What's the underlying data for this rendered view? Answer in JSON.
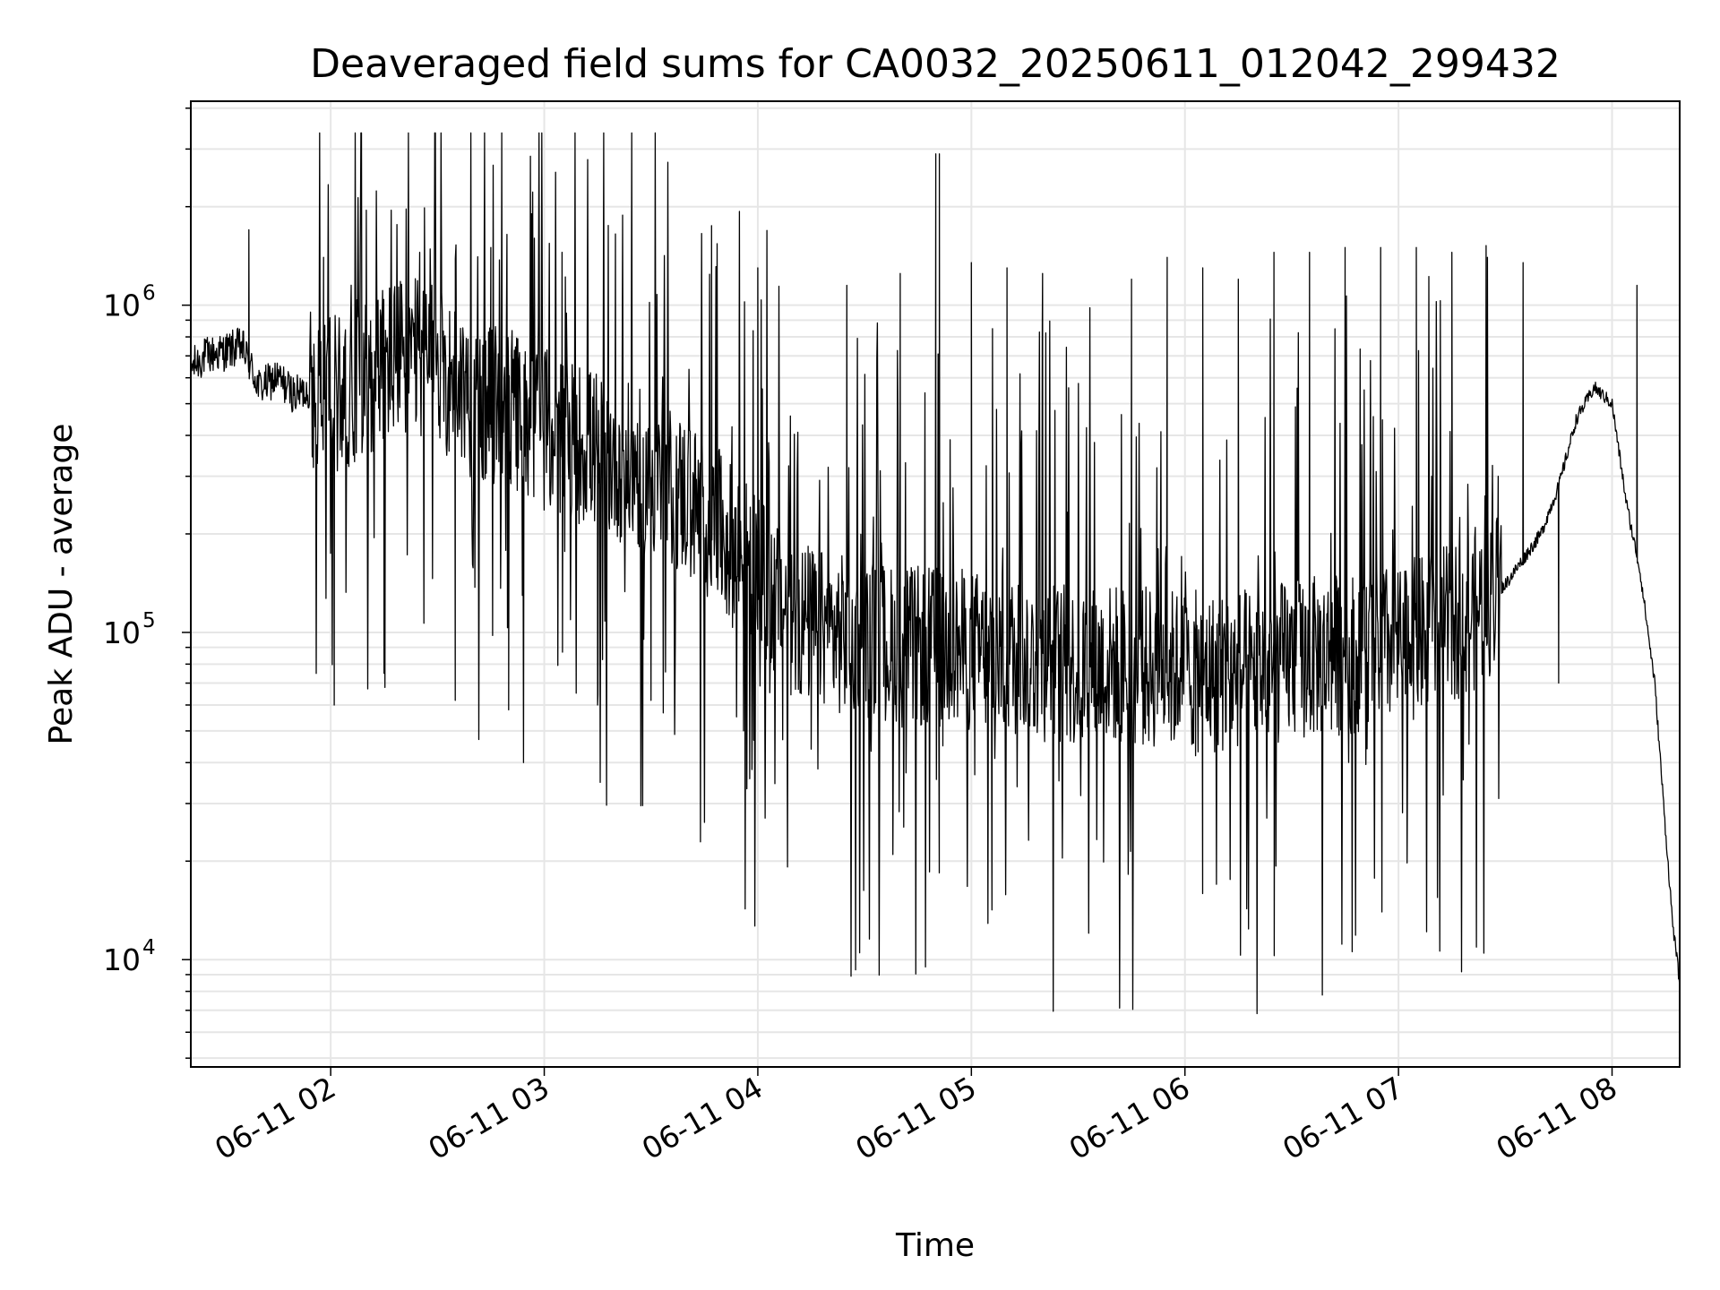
{
  "chart_data": {
    "type": "line",
    "title": "Deaveraged field sums for CA0032_20250611_012042_299432",
    "xlabel": "Time",
    "ylabel": "Peak ADU - average",
    "x_axis": {
      "kind": "time",
      "range": [
        "2025-06-11T01:20:42",
        "2025-06-11T08:19:00"
      ],
      "ticks": [
        {
          "value": "2025-06-11T02:00",
          "label": "06-11 02"
        },
        {
          "value": "2025-06-11T03:00",
          "label": "06-11 03"
        },
        {
          "value": "2025-06-11T04:00",
          "label": "06-11 04"
        },
        {
          "value": "2025-06-11T05:00",
          "label": "06-11 05"
        },
        {
          "value": "2025-06-11T06:00",
          "label": "06-11 06"
        },
        {
          "value": "2025-06-11T07:00",
          "label": "06-11 07"
        },
        {
          "value": "2025-06-11T08:00",
          "label": "06-11 08"
        }
      ]
    },
    "y_axis": {
      "scale": "log",
      "range": [
        4700,
        4200000
      ],
      "ticks": [
        {
          "value": 10000,
          "base": "10",
          "exp": "4"
        },
        {
          "value": 100000,
          "base": "10",
          "exp": "5"
        },
        {
          "value": 1000000,
          "base": "10",
          "exp": "6"
        }
      ]
    },
    "grid": true,
    "line_color": "#000000",
    "grid_color": "#e6e6e6",
    "series": [
      {
        "points": [
          [
            "2025-06-11T01:21",
            650000
          ],
          [
            "2025-06-11T01:25",
            700000
          ],
          [
            "2025-06-11T01:30",
            720000
          ],
          [
            "2025-06-11T01:35",
            750000
          ],
          [
            "2025-06-11T01:40",
            560000
          ],
          [
            "2025-06-11T01:45",
            600000
          ],
          [
            "2025-06-11T01:50",
            530000
          ],
          [
            "2025-06-11T01:55",
            560000
          ],
          [
            "2025-06-11T02:00",
            520000
          ],
          [
            "2025-06-11T02:10",
            620000
          ],
          [
            "2025-06-11T02:20",
            700000
          ],
          [
            "2025-06-11T02:30",
            650000
          ],
          [
            "2025-06-11T02:40",
            520000
          ],
          [
            "2025-06-11T02:50",
            480000
          ],
          [
            "2025-06-11T03:00",
            420000
          ],
          [
            "2025-06-11T03:10",
            380000
          ],
          [
            "2025-06-11T03:20",
            340000
          ],
          [
            "2025-06-11T03:30",
            300000
          ],
          [
            "2025-06-11T03:40",
            260000
          ],
          [
            "2025-06-11T03:50",
            200000
          ],
          [
            "2025-06-11T04:00",
            150000
          ],
          [
            "2025-06-11T04:10",
            110000
          ],
          [
            "2025-06-11T04:20",
            100000
          ],
          [
            "2025-06-11T04:30",
            95000
          ],
          [
            "2025-06-11T04:40",
            90000
          ],
          [
            "2025-06-11T04:50",
            90000
          ],
          [
            "2025-06-11T05:00",
            88000
          ],
          [
            "2025-06-11T05:10",
            85000
          ],
          [
            "2025-06-11T05:20",
            82000
          ],
          [
            "2025-06-11T05:30",
            78000
          ],
          [
            "2025-06-11T05:40",
            80000
          ],
          [
            "2025-06-11T05:50",
            78000
          ],
          [
            "2025-06-11T06:00",
            76000
          ],
          [
            "2025-06-11T06:10",
            75000
          ],
          [
            "2025-06-11T06:20",
            78000
          ],
          [
            "2025-06-11T06:30",
            82000
          ],
          [
            "2025-06-11T06:40",
            85000
          ],
          [
            "2025-06-11T06:50",
            88000
          ],
          [
            "2025-06-11T07:00",
            92000
          ],
          [
            "2025-06-11T07:10",
            100000
          ],
          [
            "2025-06-11T07:20",
            115000
          ],
          [
            "2025-06-11T07:30",
            140000
          ],
          [
            "2025-06-11T07:40",
            200000
          ],
          [
            "2025-06-11T07:45",
            280000
          ],
          [
            "2025-06-11T07:50",
            450000
          ],
          [
            "2025-06-11T07:55",
            560000
          ],
          [
            "2025-06-11T08:00",
            500000
          ],
          [
            "2025-06-11T08:04",
            250000
          ],
          [
            "2025-06-11T08:08",
            150000
          ],
          [
            "2025-06-11T08:12",
            70000
          ],
          [
            "2025-06-11T08:15",
            25000
          ],
          [
            "2025-06-11T08:17",
            13000
          ],
          [
            "2025-06-11T08:19",
            8500
          ]
        ],
        "spikes": [
          [
            "2025-06-11T01:37",
            1700000
          ],
          [
            "2025-06-11T01:58",
            1400000
          ],
          [
            "2025-06-11T02:01",
            60000
          ],
          [
            "2025-06-11T02:10",
            1950000
          ],
          [
            "2025-06-11T02:15",
            75000
          ],
          [
            "2025-06-11T02:25",
            1450000
          ],
          [
            "2025-06-11T02:35",
            62000
          ],
          [
            "2025-06-11T02:45",
            1500000
          ],
          [
            "2025-06-11T02:50",
            58000
          ],
          [
            "2025-06-11T03:05",
            1450000
          ],
          [
            "2025-06-11T03:15",
            60000
          ],
          [
            "2025-06-11T03:20",
            1650000
          ],
          [
            "2025-06-11T03:30",
            62000
          ],
          [
            "2025-06-11T03:47",
            1750000
          ],
          [
            "2025-06-11T03:56",
            50000
          ],
          [
            "2025-06-11T04:00",
            1300000
          ],
          [
            "2025-06-11T04:07",
            47000
          ],
          [
            "2025-06-11T04:15",
            44000
          ],
          [
            "2025-06-11T04:25",
            1150000
          ],
          [
            "2025-06-11T04:40",
            1250000
          ],
          [
            "2025-06-11T04:50",
            2900000
          ],
          [
            "2025-06-11T04:51",
            2900000
          ],
          [
            "2025-06-11T04:52",
            45000
          ],
          [
            "2025-06-11T05:00",
            1350000
          ],
          [
            "2025-06-11T05:10",
            1300000
          ],
          [
            "2025-06-11T05:20",
            1250000
          ],
          [
            "2025-06-11T05:35",
            50000
          ],
          [
            "2025-06-11T05:45",
            1200000
          ],
          [
            "2025-06-11T05:55",
            1400000
          ],
          [
            "2025-06-11T06:05",
            1300000
          ],
          [
            "2025-06-11T06:03",
            42000
          ],
          [
            "2025-06-11T06:15",
            1200000
          ],
          [
            "2025-06-11T06:25",
            1450000
          ],
          [
            "2025-06-11T06:35",
            1450000
          ],
          [
            "2025-06-11T06:45",
            1500000
          ],
          [
            "2025-06-11T06:55",
            1500000
          ],
          [
            "2025-06-11T07:05",
            1500000
          ],
          [
            "2025-06-11T07:15",
            1450000
          ],
          [
            "2025-06-11T07:25",
            1400000
          ],
          [
            "2025-06-11T07:35",
            1350000
          ],
          [
            "2025-06-11T07:45",
            70000
          ],
          [
            "2025-06-11T08:07",
            1150000
          ]
        ]
      }
    ]
  }
}
